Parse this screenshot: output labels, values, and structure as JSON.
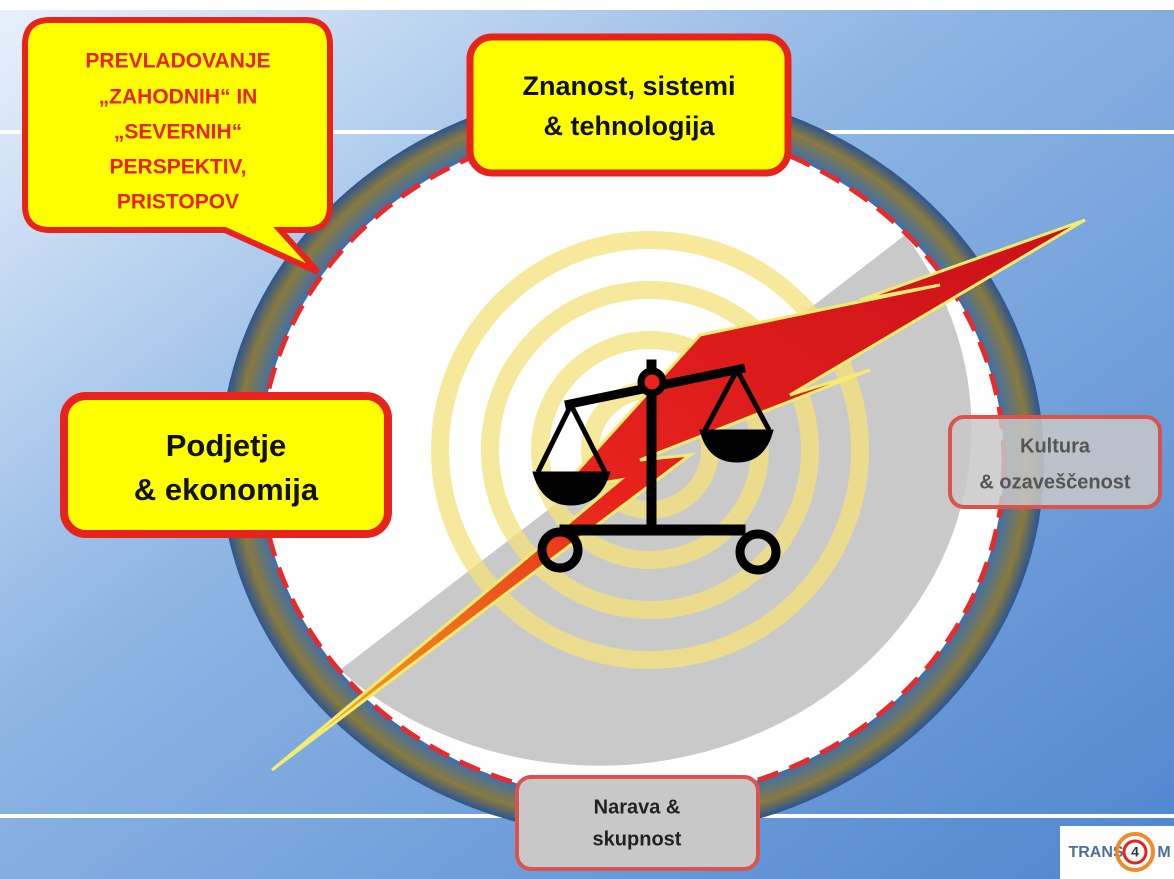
{
  "callout": {
    "lines": [
      "PREVLADOVANJE",
      "„ZAHODNIH“ IN",
      "„SEVERNIH“",
      "PERSPEKTIV,",
      "PRISTOPOV"
    ]
  },
  "boxes": [
    {
      "lines": [
        "Znanost, sistemi",
        "& tehnologija"
      ]
    },
    {
      "lines": [
        "Podjetje",
        "& ekonomija"
      ]
    },
    {
      "lines": [
        "Kultura",
        "& ozaveščenost"
      ]
    },
    {
      "lines": [
        "Narava &",
        "skupnost"
      ]
    }
  ],
  "logo": {
    "left": "TRANS",
    "number": "4",
    "right": "M"
  }
}
